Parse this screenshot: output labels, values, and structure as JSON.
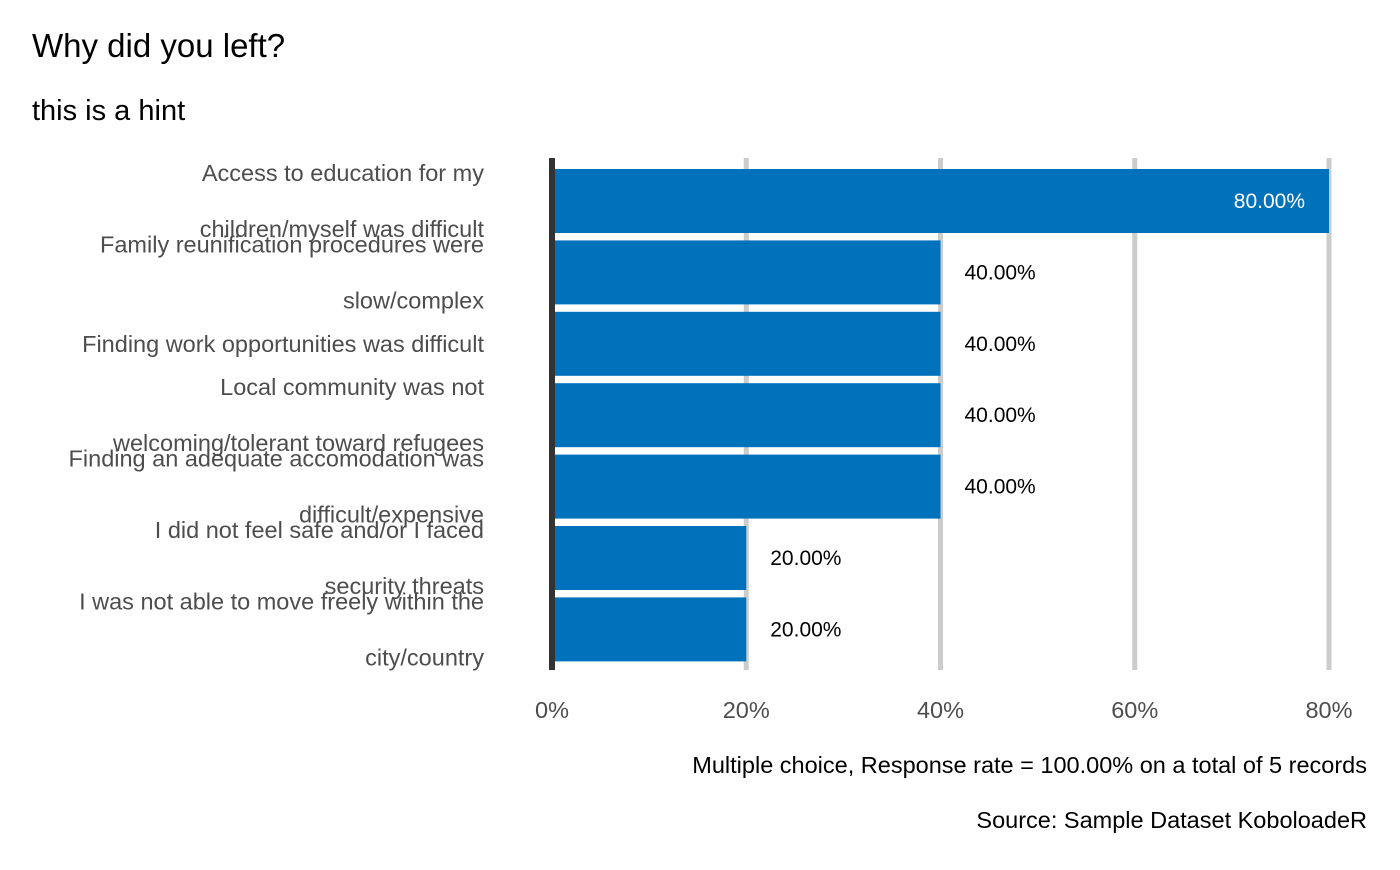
{
  "chart_data": {
    "type": "bar",
    "orientation": "horizontal",
    "title": "Why did you left?",
    "subtitle": "this is a hint",
    "categories": [
      [
        "Access to education for my",
        "children/myself was difficult"
      ],
      [
        "Family reunification procedures were",
        "slow/complex"
      ],
      [
        "Finding work opportunities was difficult"
      ],
      [
        "Local community was not",
        "welcoming/tolerant toward refugees"
      ],
      [
        "Finding an adequate accomodation was",
        "difficult/expensive"
      ],
      [
        "I did not feel safe and/or I faced",
        "security threats"
      ],
      [
        "I was not able to move freely within the",
        "city/country"
      ]
    ],
    "values": [
      80,
      40,
      40,
      40,
      40,
      20,
      20
    ],
    "value_labels": [
      "80.00%",
      "40.00%",
      "40.00%",
      "40.00%",
      "40.00%",
      "20.00%",
      "20.00%"
    ],
    "xlim": [
      0,
      80
    ],
    "x_ticks": [
      0,
      20,
      40,
      60,
      80
    ],
    "x_tick_labels": [
      "0%",
      "20%",
      "40%",
      "60%",
      "80%"
    ],
    "grid": "vertical",
    "caption_line1": "Multiple choice, Response rate = 100.00% on a total of 5 records",
    "caption_line2": "Source: Sample Dataset KoboloadeR",
    "colors": {
      "bar": "#0072bc",
      "grid": "#cccccc",
      "axis": "#333333",
      "label_inside": "#ffffff",
      "label_outside": "#000000",
      "category_text": "#4d4d4d"
    }
  }
}
